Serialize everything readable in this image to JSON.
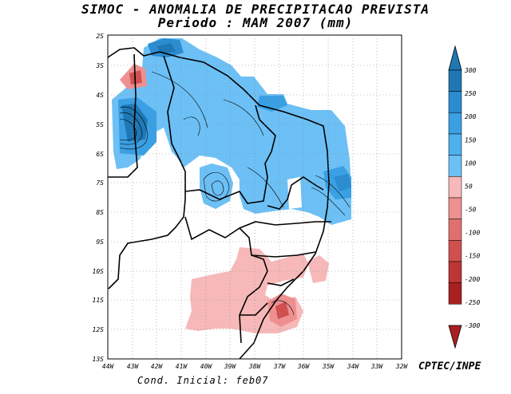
{
  "title_line1": "SIMOC -  ANOMALIA DE PRECIPITACAO PREVISTA",
  "title_line2": "Periodo : MAM 2007 (mm)",
  "credit": "CPTEC/INPE",
  "initial_condition": "Cond. Inicial: feb07",
  "lat_labels": [
    "2S",
    "3S",
    "4S",
    "5S",
    "6S",
    "7S",
    "8S",
    "9S",
    "10S",
    "11S",
    "12S",
    "13S"
  ],
  "lon_labels": [
    "44W",
    "43W",
    "42W",
    "41W",
    "40W",
    "39W",
    "38W",
    "37W",
    "36W",
    "35W",
    "34W",
    "33W",
    "32W"
  ],
  "legend": {
    "labels": [
      "300",
      "250",
      "200",
      "150",
      "100",
      "50",
      "-50",
      "-100",
      "-150",
      "-200",
      "-250",
      "-300"
    ],
    "colors": [
      "#1f78b4",
      "#2b8cd0",
      "#3aa0e3",
      "#4fb0ee",
      "#6cc0f5",
      "#ffffff",
      "#f6b8b8",
      "#ee9090",
      "#e07070",
      "#d05050",
      "#bd3535",
      "#a82020"
    ]
  },
  "chart_data": {
    "type": "heatmap",
    "title": "SIMOC -  ANOMALIA DE PRECIPITACAO PREVISTA",
    "subtitle": "Periodo : MAM 2007 (mm)",
    "x_range": [
      "44W",
      "32W"
    ],
    "y_range": [
      "2S",
      "13S"
    ],
    "grid": true,
    "color_levels": [
      -300,
      -250,
      -200,
      -150,
      -100,
      -50,
      50,
      100,
      150,
      200,
      250,
      300
    ]
  }
}
